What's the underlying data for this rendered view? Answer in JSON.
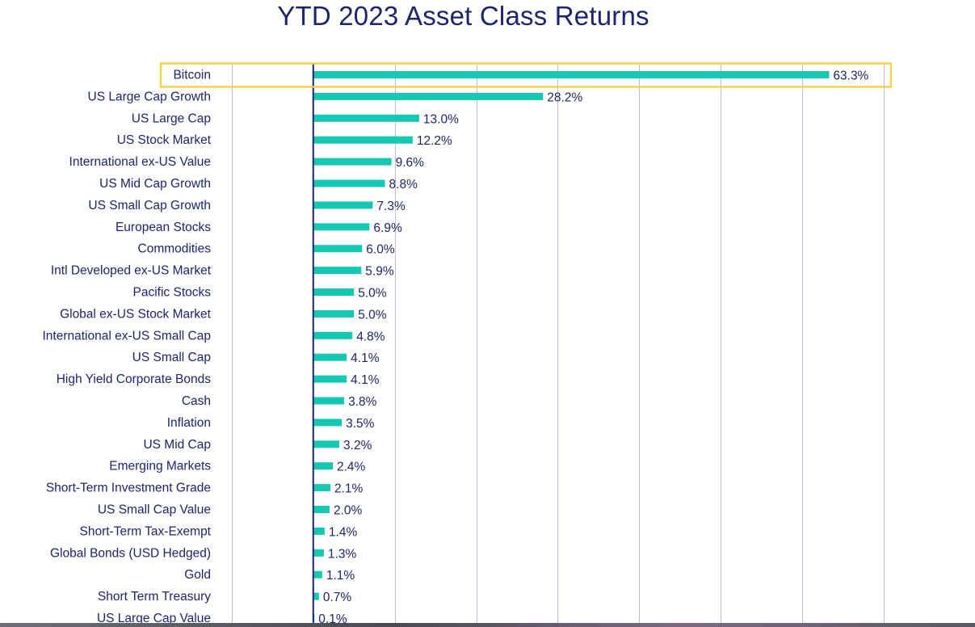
{
  "chart_data": {
    "type": "bar",
    "orientation": "horizontal",
    "title": "YTD 2023 Asset Class Returns",
    "categories": [
      "Bitcoin",
      "US Large Cap Growth",
      "US Large Cap",
      "US Stock Market",
      "International ex-US Value",
      "US Mid Cap Growth",
      "US Small Cap Growth",
      "European Stocks",
      "Commodities",
      "Intl Developed ex-US Market",
      "Pacific Stocks",
      "Global ex-US Stock Market",
      "International ex-US Small Cap",
      "US Small Cap",
      "High Yield Corporate Bonds",
      "Cash",
      "Inflation",
      "US Mid Cap",
      "Emerging Markets",
      "Short-Term Investment Grade",
      "US Small Cap Value",
      "Short-Term Tax-Exempt",
      "Global Bonds (USD Hedged)",
      "Gold",
      "Short Term Treasury",
      "US Large Cap Value"
    ],
    "values": [
      63.3,
      28.2,
      13.0,
      12.2,
      9.6,
      8.8,
      7.3,
      6.9,
      6.0,
      5.9,
      5.0,
      5.0,
      4.8,
      4.1,
      4.1,
      3.8,
      3.5,
      3.2,
      2.4,
      2.1,
      2.0,
      1.4,
      1.3,
      1.1,
      0.7,
      0.1
    ],
    "value_labels": [
      "63.3%",
      "28.2%",
      "13.0%",
      "12.2%",
      "9.6%",
      "8.8%",
      "7.3%",
      "6.9%",
      "6.0%",
      "5.9%",
      "5.0%",
      "5.0%",
      "4.8%",
      "4.1%",
      "4.1%",
      "3.8%",
      "3.5%",
      "3.2%",
      "2.4%",
      "2.1%",
      "2.0%",
      "1.4%",
      "1.3%",
      "1.1%",
      "0.7%",
      "0.1%"
    ],
    "xlim": [
      -20,
      70
    ],
    "grid_step": 10,
    "grid": true,
    "highlighted_category": "Bitcoin",
    "xlabel": "",
    "ylabel": "",
    "colors": {
      "bar": "#14c8b4",
      "text": "#1c2470",
      "grid": "#b7bde6",
      "zero_axis": "#1c2470",
      "highlight_box": "#f2d24a"
    }
  }
}
